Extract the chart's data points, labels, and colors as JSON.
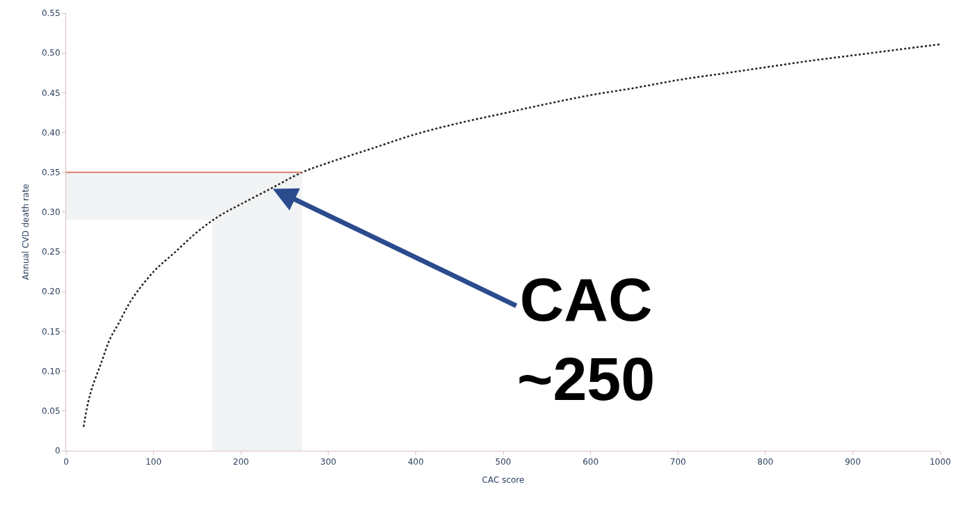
{
  "chart_data": {
    "type": "line",
    "xlabel": "CAC score",
    "ylabel": "Annual CVD death rate",
    "x": [
      20,
      25,
      30,
      40,
      50,
      60,
      75,
      100,
      125,
      150,
      175,
      200,
      235,
      270,
      300,
      350,
      400,
      450,
      500,
      550,
      600,
      650,
      700,
      750,
      800,
      850,
      900,
      950,
      1000
    ],
    "series": [
      {
        "color": "#222222",
        "values": [
          0.03,
          0.06,
          0.08,
          0.11,
          0.14,
          0.16,
          0.19,
          0.225,
          0.25,
          0.275,
          0.295,
          0.31,
          0.33,
          0.35,
          0.362,
          0.38,
          0.398,
          0.412,
          0.424,
          0.436,
          0.447,
          0.456,
          0.466,
          0.474,
          0.482,
          0.49,
          0.497,
          0.504,
          0.511
        ]
      }
    ],
    "line_style": "dotted",
    "marker": "none",
    "xlim": [
      0,
      1000
    ],
    "xticks": [
      0,
      100,
      200,
      300,
      400,
      500,
      600,
      700,
      800,
      900,
      1000
    ],
    "ylim": [
      0,
      0.55
    ],
    "yticks": [
      {
        "value": 0,
        "label": "0"
      },
      {
        "value": 0.05,
        "label": "0.05"
      },
      {
        "value": 0.1,
        "label": "0.10"
      },
      {
        "value": 0.15,
        "label": "0.15"
      },
      {
        "value": 0.2,
        "label": "0.20"
      },
      {
        "value": 0.25,
        "label": "0.25"
      },
      {
        "value": 0.3,
        "label": "0.30"
      },
      {
        "value": 0.35,
        "label": "0.35"
      },
      {
        "value": 0.4,
        "label": "0.40"
      },
      {
        "value": 0.45,
        "label": "0.45"
      },
      {
        "value": 0.5,
        "label": "0.50"
      },
      {
        "value": 0.55,
        "label": "0.55"
      }
    ],
    "ref_lines": [
      {
        "axis": "y",
        "value": 0.35,
        "color": "#d9806b"
      }
    ],
    "bands": [
      {
        "axis": "x",
        "from": 167,
        "to": 270,
        "color": "#f1f3f4"
      },
      {
        "axis": "y",
        "from": 0.29,
        "to": 0.35,
        "color": "#f1f3f4"
      }
    ],
    "annotations": [
      {
        "text": "CAC\n~250",
        "x": 235,
        "y": 0.33
      }
    ],
    "grid": false,
    "legend": false
  }
}
